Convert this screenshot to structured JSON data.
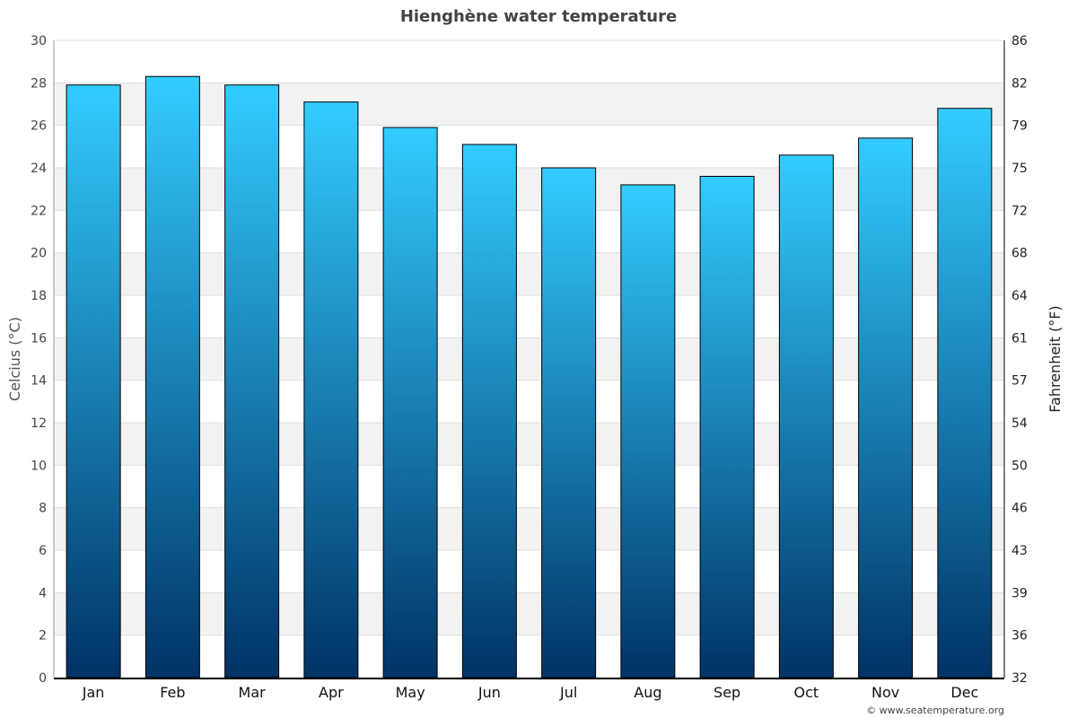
{
  "chart_data": {
    "type": "bar",
    "title": "Hienghène water temperature",
    "categories": [
      "Jan",
      "Feb",
      "Mar",
      "Apr",
      "May",
      "Jun",
      "Jul",
      "Aug",
      "Sep",
      "Oct",
      "Nov",
      "Dec"
    ],
    "values": [
      27.9,
      28.3,
      27.9,
      27.1,
      25.9,
      25.1,
      24.0,
      23.2,
      23.6,
      24.6,
      25.4,
      26.8
    ],
    "ylabel": "Celcius (°C)",
    "ylabel_right": "Fahrenheit (°F)",
    "ylim": [
      0,
      30
    ],
    "yticks": [
      0,
      2,
      4,
      6,
      8,
      10,
      12,
      14,
      16,
      18,
      20,
      22,
      24,
      26,
      28,
      30
    ],
    "yticks_right": [
      "32",
      "36",
      "39",
      "43",
      "46",
      "50",
      "54",
      "57",
      "61",
      "64",
      "68",
      "72",
      "75",
      "79",
      "82",
      "86"
    ],
    "grid": true,
    "bar_gradient": [
      "#33ccff",
      "#003366"
    ],
    "band_color": "#f2f2f2"
  },
  "credit": "© www.seatemperature.org"
}
